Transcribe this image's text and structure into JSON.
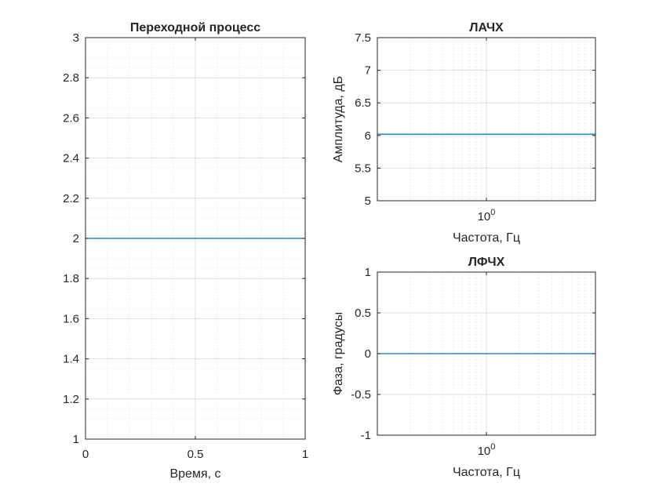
{
  "chart_data": [
    {
      "type": "line",
      "title": "Переходной процесс",
      "xlabel": "Время, с",
      "ylabel": "",
      "xlim": [
        0,
        1
      ],
      "ylim": [
        1,
        3
      ],
      "xticks": [
        "0",
        "0.5",
        "1"
      ],
      "yticks": [
        "1",
        "1.2",
        "1.4",
        "1.6",
        "1.8",
        "2",
        "2.2",
        "2.4",
        "2.6",
        "2.8",
        "3"
      ],
      "grid": true,
      "minor_grid": true,
      "series": [
        {
          "x": [
            0,
            1
          ],
          "y": [
            2,
            2
          ],
          "color": "#0072bd"
        }
      ]
    },
    {
      "type": "line",
      "title": "ЛАЧХ",
      "xlabel": "Частота, Гц",
      "ylabel": "Амплитуда, дБ",
      "xscale": "log",
      "xlim": [
        0.1,
        10
      ],
      "ylim": [
        5,
        7.5
      ],
      "xticks": [
        "10^0"
      ],
      "yticks": [
        "5",
        "5.5",
        "6",
        "6.5",
        "7",
        "7.5"
      ],
      "grid": true,
      "series": [
        {
          "x": [
            0.1,
            10
          ],
          "y": [
            6.02,
            6.02
          ],
          "color": "#0072bd"
        }
      ]
    },
    {
      "type": "line",
      "title": "ЛФЧХ",
      "xlabel": "Частота, Гц",
      "ylabel": "Фаза, градусы",
      "xscale": "log",
      "xlim": [
        0.1,
        10
      ],
      "ylim": [
        -1,
        1
      ],
      "xticks": [
        "10^0"
      ],
      "yticks": [
        "-1",
        "-0.5",
        "0",
        "0.5",
        "1"
      ],
      "grid": true,
      "series": [
        {
          "x": [
            0.1,
            10
          ],
          "y": [
            0,
            0
          ],
          "color": "#0072bd"
        }
      ]
    }
  ]
}
